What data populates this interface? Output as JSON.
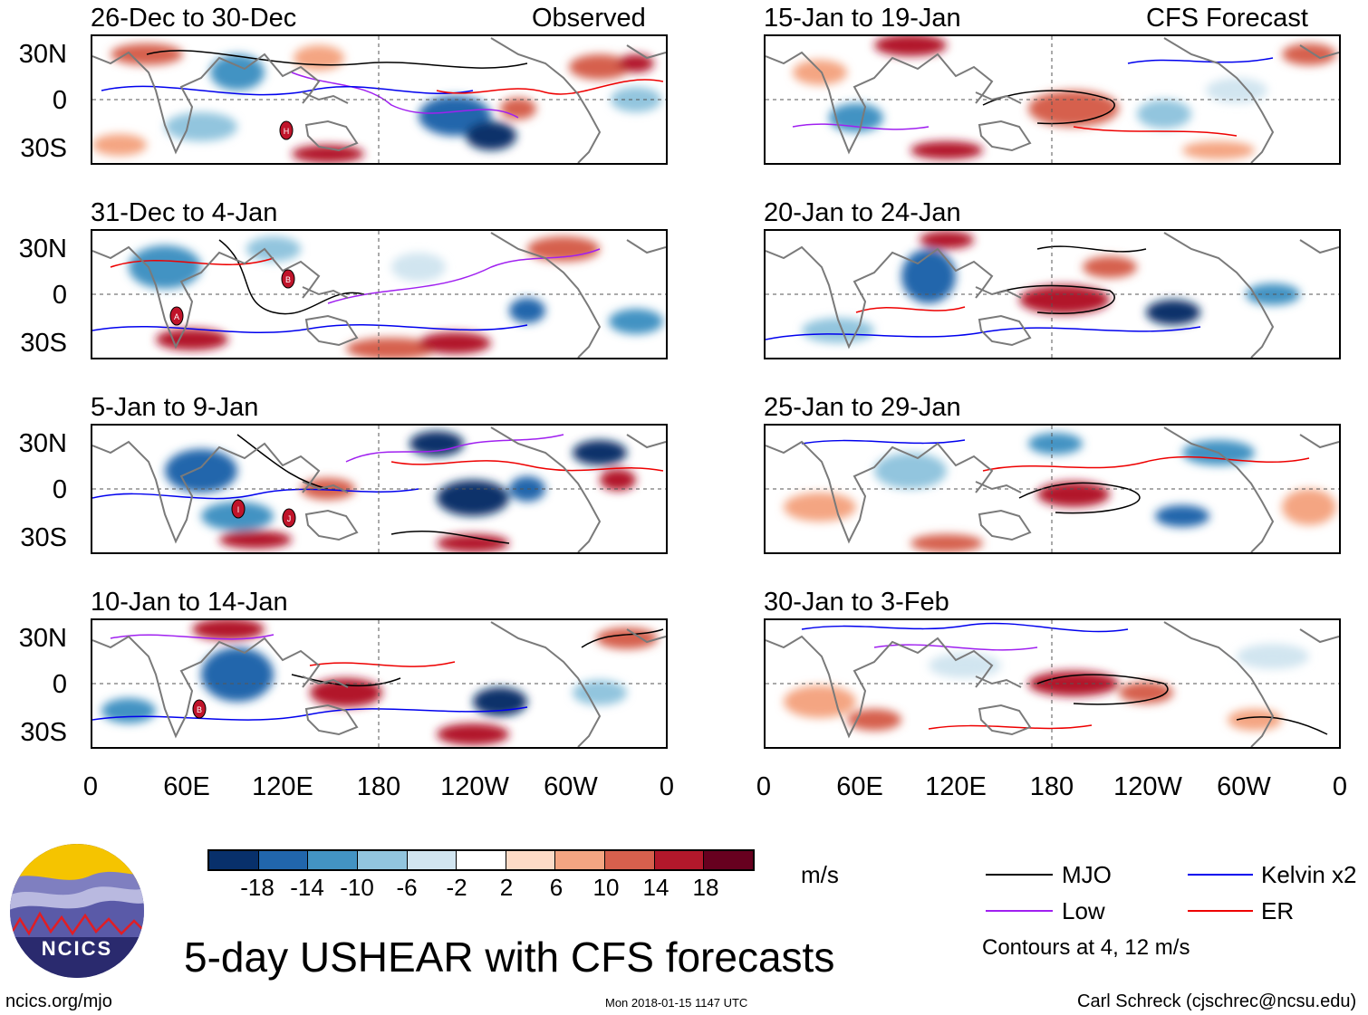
{
  "panels_left": [
    {
      "title": "26-Dec to 30-Dec",
      "tag": "Observed"
    },
    {
      "title": "31-Dec to 4-Jan",
      "tag": ""
    },
    {
      "title": "5-Jan to 9-Jan",
      "tag": ""
    },
    {
      "title": "10-Jan to 14-Jan",
      "tag": ""
    }
  ],
  "panels_right": [
    {
      "title": "15-Jan to 19-Jan",
      "tag": "CFS Forecast"
    },
    {
      "title": "20-Jan to 24-Jan",
      "tag": ""
    },
    {
      "title": "25-Jan to 29-Jan",
      "tag": ""
    },
    {
      "title": "30-Jan to 3-Feb",
      "tag": ""
    }
  ],
  "lat_labels": [
    "30N",
    "0",
    "30S"
  ],
  "lon_labels": [
    "0",
    "60E",
    "120E",
    "180",
    "120W",
    "60W",
    "0"
  ],
  "colorbar": {
    "colors": [
      "#08306b",
      "#2166ac",
      "#4393c3",
      "#92c5de",
      "#d1e5f0",
      "#ffffff",
      "#fddbc7",
      "#f4a582",
      "#d6604d",
      "#b2182b",
      "#67001f"
    ],
    "labels": [
      "-18",
      "-14",
      "-10",
      "-6",
      "-2",
      "2",
      "6",
      "10",
      "14",
      "18"
    ],
    "units": "m/s"
  },
  "legend": {
    "items": [
      {
        "label": "MJO",
        "color": "#000000"
      },
      {
        "label": "Kelvin x2",
        "color": "#0000ee"
      },
      {
        "label": "Low",
        "color": "#a020f0"
      },
      {
        "label": "ER",
        "color": "#ee0000"
      }
    ],
    "note": "Contours at 4, 12 m/s"
  },
  "main_title": "5-day USHEAR with CFS forecasts",
  "logo_text": "NCICS",
  "footer": {
    "left": "ncics.org/mjo",
    "center": "Mon 2018-01-15 1147 UTC",
    "right": "Carl Schreck (cjschrec@ncsu.edu)"
  },
  "storm_markers": [
    {
      "panel": 0,
      "label": "H"
    },
    {
      "panel": 1,
      "label": "B"
    },
    {
      "panel": 1,
      "label": "A"
    },
    {
      "panel": 2,
      "label": "I"
    },
    {
      "panel": 2,
      "label": "J"
    },
    {
      "panel": 3,
      "label": "B"
    }
  ]
}
